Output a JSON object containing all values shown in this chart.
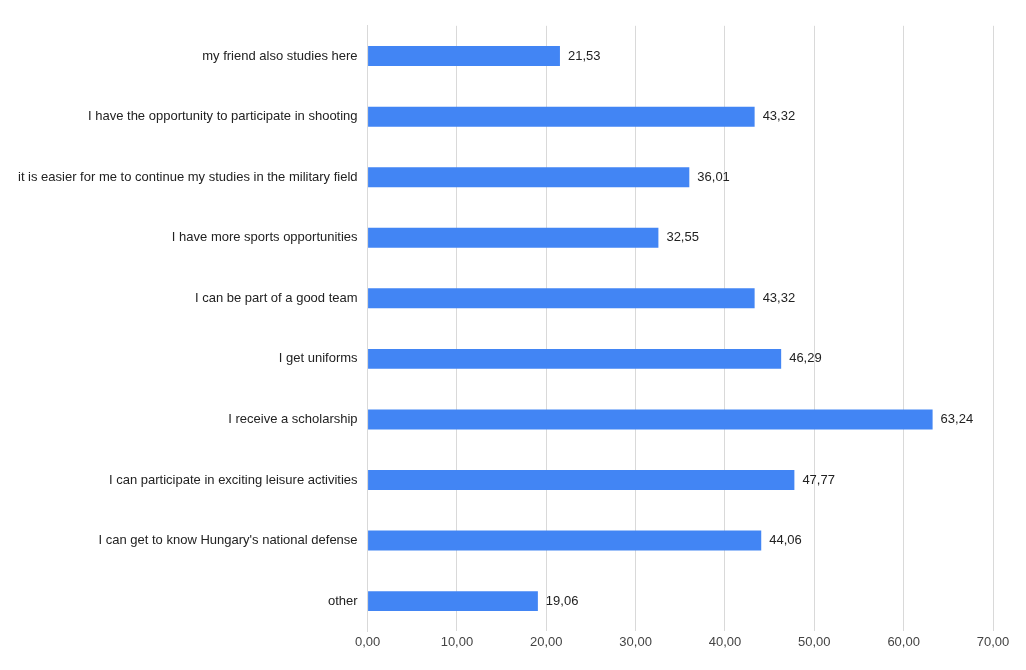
{
  "chart_data": {
    "type": "bar",
    "orientation": "horizontal",
    "categories": [
      "my friend also studies here",
      "I have the opportunity to participate in shooting",
      "it is easier for me to continue my studies in the military field",
      "I have more sports opportunities",
      "I can be part of a good team",
      "I get uniforms",
      "I receive a scholarship",
      "I can participate in exciting leisure activities",
      "I can get to know Hungary's national defense",
      "other"
    ],
    "values": [
      21.53,
      43.32,
      36.01,
      32.55,
      43.32,
      46.29,
      63.24,
      47.77,
      44.06,
      19.06
    ],
    "value_labels": [
      "21,53",
      "43,32",
      "36,01",
      "32,55",
      "43,32",
      "46,29",
      "63,24",
      "47,77",
      "44,06",
      "19,06"
    ],
    "color": "#4285f4",
    "xlim": [
      0,
      70
    ],
    "xticks": [
      {
        "value": 0,
        "label": "0,00"
      },
      {
        "value": 10,
        "label": "10,00"
      },
      {
        "value": 20,
        "label": "20,00"
      },
      {
        "value": 30,
        "label": "30,00"
      },
      {
        "value": 40,
        "label": "40,00"
      },
      {
        "value": 50,
        "label": "50,00"
      },
      {
        "value": 60,
        "label": "60,00"
      },
      {
        "value": 70,
        "label": "70,00"
      }
    ],
    "grid": "x"
  }
}
